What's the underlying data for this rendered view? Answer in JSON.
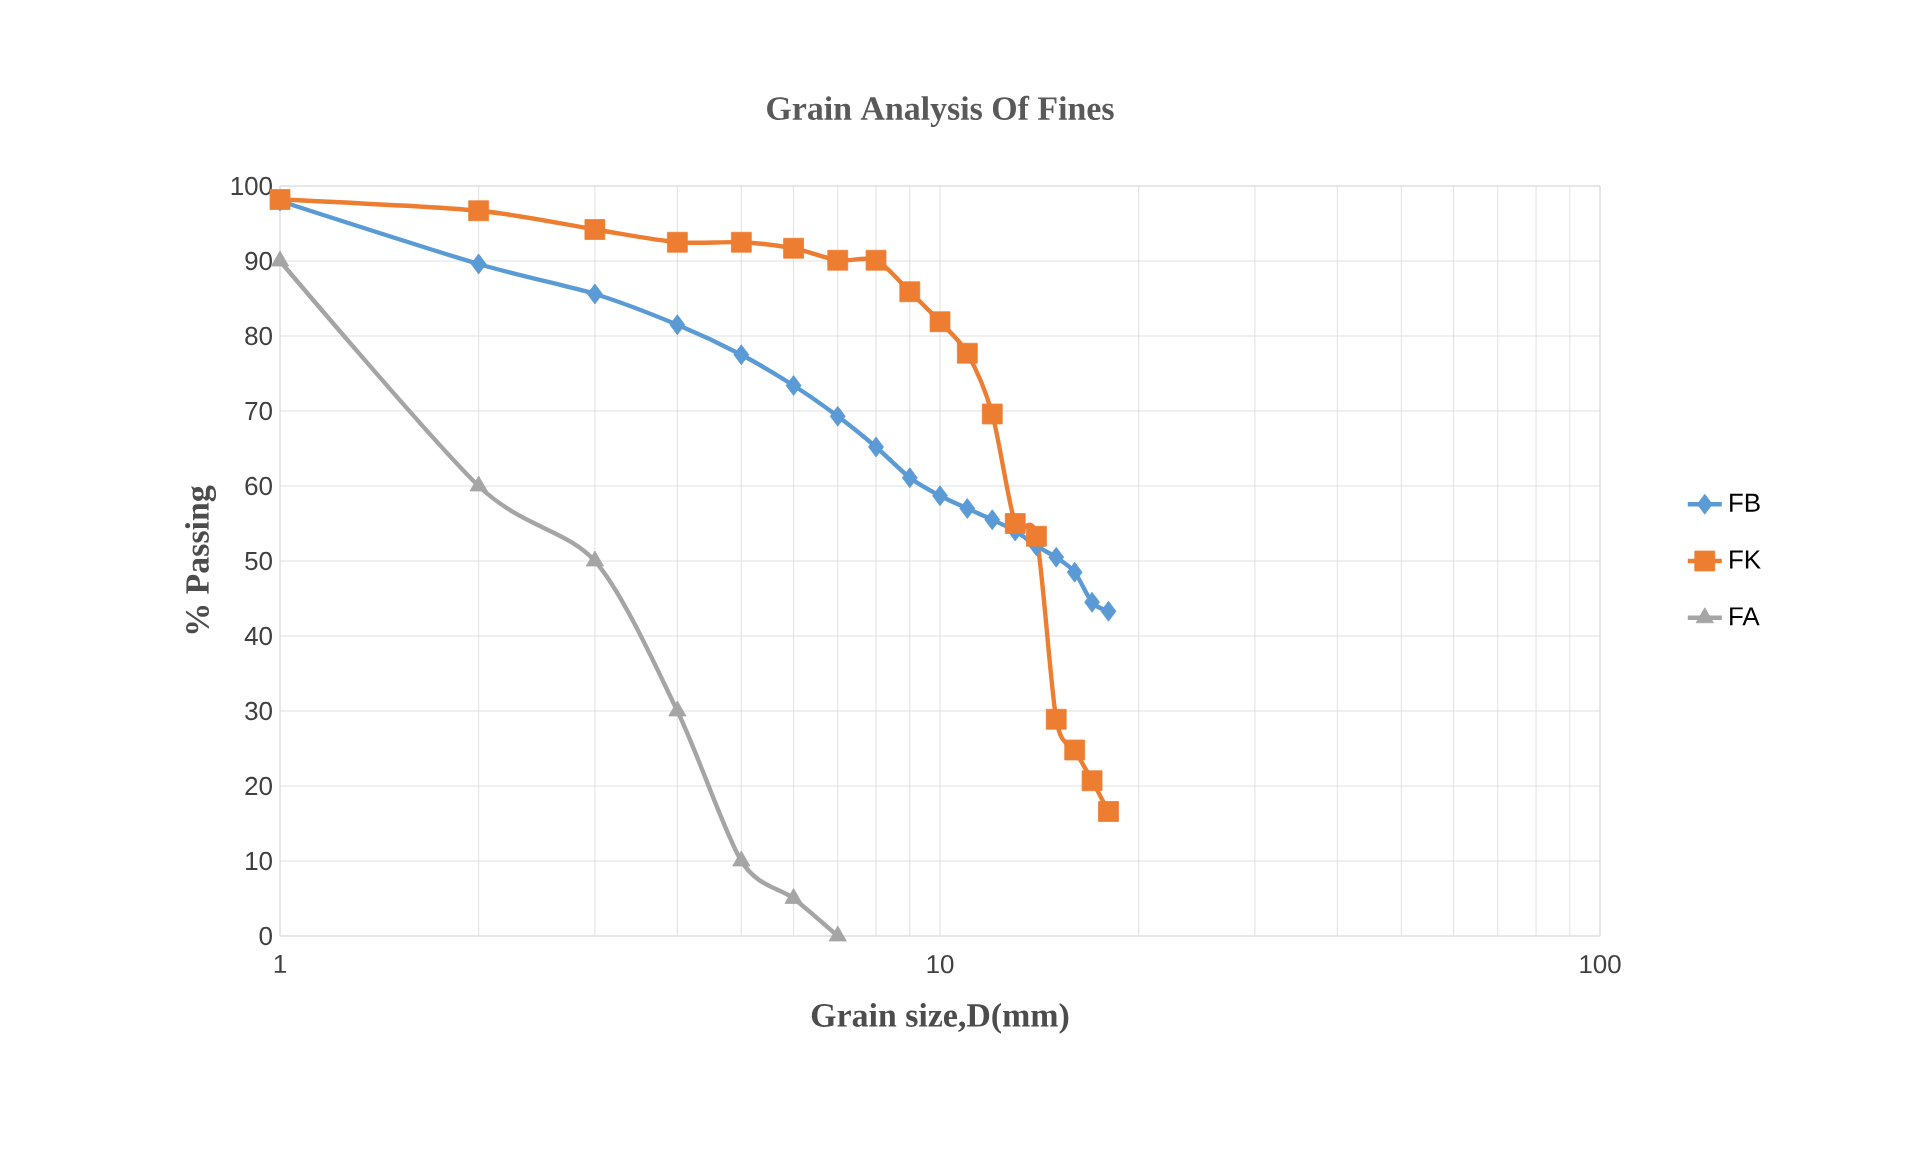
{
  "chart_data": {
    "type": "line",
    "title": "Grain Analysis Of Fines",
    "xlabel": "Grain size,D(mm)",
    "ylabel": "% Passing",
    "log": "x",
    "grid": true,
    "legend": "right",
    "xlim": [
      1,
      100
    ],
    "xticks": [
      1,
      10,
      100
    ],
    "ylim": [
      0,
      100
    ],
    "yticks": [
      0,
      10,
      20,
      30,
      40,
      50,
      60,
      70,
      80,
      90,
      100
    ],
    "series": [
      {
        "name": "FB",
        "color": "#5b9bd5",
        "marker": "diamond",
        "x": [
          1,
          2,
          3,
          4,
          5,
          6,
          7,
          8,
          9,
          10,
          11,
          12,
          13,
          14,
          15,
          16,
          17,
          18
        ],
        "values": [
          98,
          89.6,
          85.6,
          81.5,
          77.5,
          73.4,
          69.3,
          65.2,
          61.1,
          58.7,
          57,
          55.5,
          54,
          52,
          50.5,
          48.5,
          44.5,
          43.3
        ]
      },
      {
        "name": "FK",
        "color": "#ed7d31",
        "marker": "square",
        "x": [
          1,
          2,
          3,
          4,
          5,
          6,
          7,
          8,
          9,
          10,
          11,
          12,
          13,
          14,
          15,
          16,
          17,
          18
        ],
        "values": [
          98.2,
          96.7,
          94.2,
          92.5,
          92.5,
          91.7,
          90.1,
          90.1,
          85.9,
          81.9,
          77.7,
          69.6,
          55,
          53.3,
          28.9,
          24.8,
          20.7,
          16.6
        ]
      },
      {
        "name": "FA",
        "color": "#a5a5a5",
        "marker": "triangle",
        "x": [
          1,
          2,
          3,
          4,
          5,
          6,
          7
        ],
        "values": [
          90,
          60,
          50,
          30,
          10,
          5,
          0
        ]
      }
    ]
  }
}
